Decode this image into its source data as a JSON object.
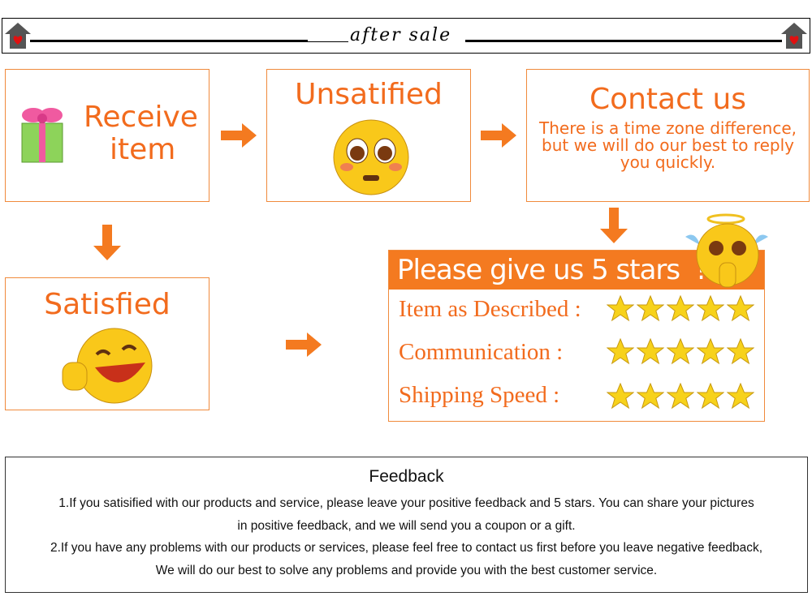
{
  "header": {
    "title": "after sale"
  },
  "steps": {
    "receive": "Receive item",
    "receive_line1": "Receive",
    "receive_line2": "item",
    "unsatisfied": "Unsatified",
    "contact_title": "Contact us",
    "contact_text": "There is a time zone difference, but we will do our best to reply you quickly.",
    "satisfied": "Satisfied"
  },
  "rating": {
    "title": "Please give us 5 stars  !",
    "rows": [
      {
        "label": "Item as Described :",
        "stars": 5
      },
      {
        "label": "Communication :",
        "stars": 5
      },
      {
        "label": "Shipping Speed :",
        "stars": 5
      }
    ]
  },
  "feedback": {
    "title": "Feedback",
    "line1": "1.If you satisified with our products and service, please leave your positive feedback and 5 stars.   You can share your pictures",
    "line2": "in positive feedback, and we will send you a coupon or a gift.",
    "line3": "2.If you have any problems with our products or services, please feel free to contact us first before you leave negative feedback,",
    "line4": "We will do our best to solve any problems and provide you with the best customer service."
  },
  "colors": {
    "accent": "#f47a20",
    "star": "#f7d21b"
  }
}
